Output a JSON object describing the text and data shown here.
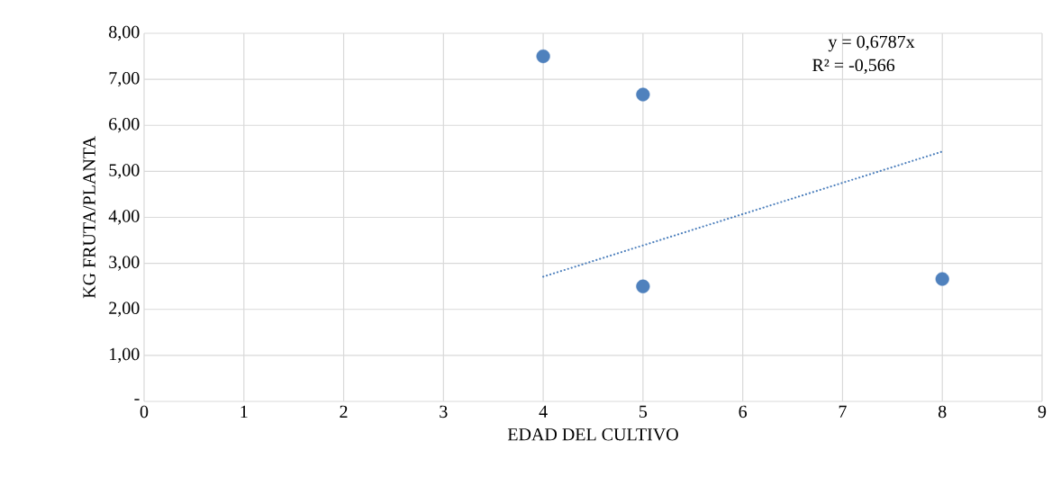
{
  "chart_data": {
    "type": "scatter",
    "xlabel": "EDAD DEL CULTIVO",
    "ylabel": "KG FRUTA/PLANTA",
    "series": [
      {
        "color": "#4f81bd",
        "x": [
          4,
          5,
          5,
          8
        ],
        "values": [
          7.5,
          6.67,
          2.5,
          2.66
        ],
        "marker": "circle"
      },
      {
        "type": "line",
        "color": "#4f81bd",
        "x": [
          4,
          8
        ],
        "values": [
          2.71,
          5.43
        ],
        "line_style": "dotted",
        "marker": "none"
      }
    ],
    "xlim": [
      0,
      9
    ],
    "xticks": [
      0,
      1,
      2,
      3,
      4,
      5,
      6,
      7,
      8,
      9
    ],
    "ylim": [
      0,
      8
    ],
    "yticks": [
      {
        "value": 0,
        "label": "-"
      },
      {
        "value": 1,
        "label": "1,00"
      },
      {
        "value": 2,
        "label": "2,00"
      },
      {
        "value": 3,
        "label": "3,00"
      },
      {
        "value": 4,
        "label": "4,00"
      },
      {
        "value": 5,
        "label": "5,00"
      },
      {
        "value": 6,
        "label": "6,00"
      },
      {
        "value": 7,
        "label": "7,00"
      },
      {
        "value": 8,
        "label": "8,00"
      }
    ],
    "grid": true,
    "annotations": [
      "y = 0,6787x",
      "R² = -0,566"
    ]
  }
}
